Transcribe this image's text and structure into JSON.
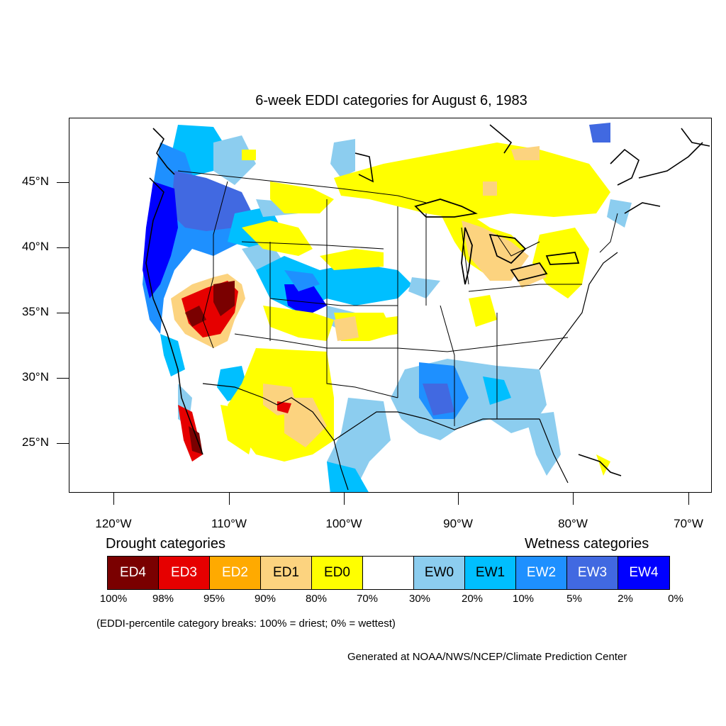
{
  "title": "6-week EDDI categories for August 6, 1983",
  "lat_labels": [
    "45°N",
    "40°N",
    "35°N",
    "30°N",
    "25°N"
  ],
  "lon_labels": [
    "120°W",
    "110°W",
    "100°W",
    "90°W",
    "80°W",
    "70°W"
  ],
  "legend": {
    "drought_title": "Drought categories",
    "wetness_title": "Wetness categories",
    "categories": [
      {
        "label": "ED4",
        "color": "#7a0000",
        "text_color": "#ffffff"
      },
      {
        "label": "ED3",
        "color": "#e60000",
        "text_color": "#ffffff"
      },
      {
        "label": "ED2",
        "color": "#ffaa00",
        "text_color": "#ffffff"
      },
      {
        "label": "ED1",
        "color": "#fcd37f",
        "text_color": "#000000"
      },
      {
        "label": "ED0",
        "color": "#ffff00",
        "text_color": "#000000"
      },
      {
        "label": "",
        "color": "#ffffff",
        "text_color": "#000000"
      },
      {
        "label": "EW0",
        "color": "#8ccdef",
        "text_color": "#000000"
      },
      {
        "label": "EW1",
        "color": "#00bfff",
        "text_color": "#000000"
      },
      {
        "label": "EW2",
        "color": "#1e90ff",
        "text_color": "#ffffff"
      },
      {
        "label": "EW3",
        "color": "#4169e1",
        "text_color": "#ffffff"
      },
      {
        "label": "EW4",
        "color": "#0000ff",
        "text_color": "#ffffff"
      }
    ],
    "percent_breaks": [
      "100%",
      "98%",
      "95%",
      "90%",
      "80%",
      "70%",
      "30%",
      "20%",
      "10%",
      "5%",
      "2%",
      "0%"
    ]
  },
  "note": "(EDDI-percentile category breaks: 100% = driest; 0% = wettest)",
  "credit": "Generated at NOAA/NWS/NCEP/Climate Prediction Center"
}
